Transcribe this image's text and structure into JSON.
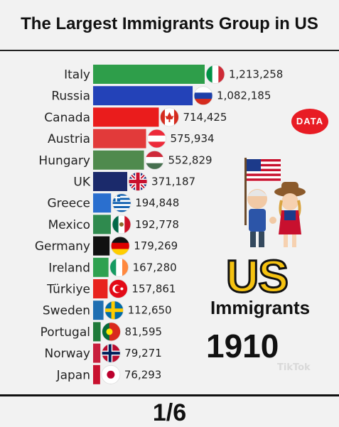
{
  "title": "The Largest Immigrants Group in US",
  "page_indicator": "1/6",
  "badge": "DATA",
  "side_title": "US",
  "side_subtitle": "Immigrants",
  "year": "1910",
  "watermark": "TikTok",
  "chart_data": {
    "type": "bar",
    "orientation": "horizontal",
    "title": "The Largest Immigrants Group in US",
    "categories": [
      "Italy",
      "Russia",
      "Canada",
      "Austria",
      "Hungary",
      "UK",
      "Greece",
      "Mexico",
      "Germany",
      "Ireland",
      "Türkiye",
      "Sweden",
      "Portugal",
      "Norway",
      "Japan"
    ],
    "values": [
      1213258,
      1082185,
      714425,
      575934,
      552829,
      371187,
      194848,
      192778,
      179269,
      167280,
      157861,
      112650,
      81595,
      79271,
      76293
    ],
    "value_labels": [
      "1,213,258",
      "1,082,185",
      "714,425",
      "575,934",
      "552,829",
      "371,187",
      "194,848",
      "192,778",
      "179,269",
      "167,280",
      "157,861",
      "112,650",
      "81,595",
      "79,271",
      "76,293"
    ],
    "colors": [
      "#2e9e4a",
      "#2342b8",
      "#ea1c1c",
      "#e23a3a",
      "#4f8a4d",
      "#1b2a6b",
      "#2a6fcf",
      "#2f8a4e",
      "#111111",
      "#2fa150",
      "#e8231e",
      "#1f6fb2",
      "#1f7a3a",
      "#c81e3c",
      "#c8102e"
    ],
    "flags": [
      "italy-flag",
      "russia-flag",
      "canada-flag",
      "austria-flag",
      "hungary-flag",
      "uk-flag",
      "greece-flag",
      "mexico-flag",
      "germany-flag",
      "ireland-flag",
      "turkey-flag",
      "sweden-flag",
      "portugal-flag",
      "norway-flag",
      "japan-flag"
    ],
    "xlim": [
      0,
      1213258
    ]
  }
}
